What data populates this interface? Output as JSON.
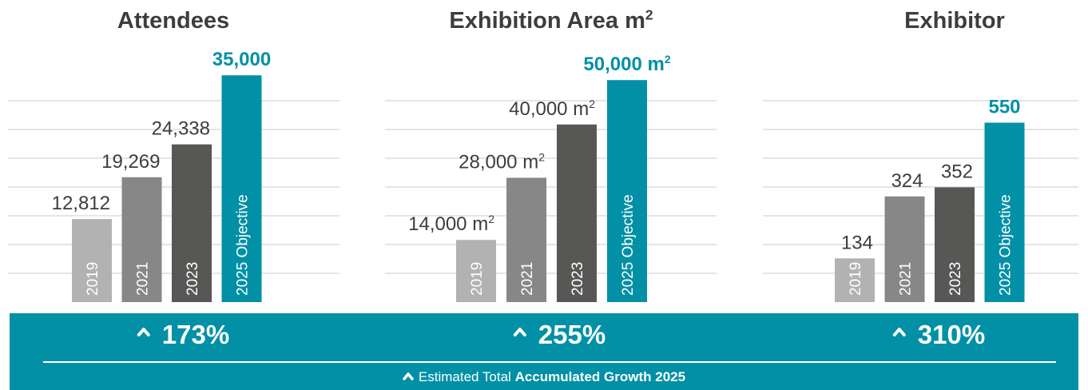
{
  "chart_data": [
    {
      "type": "bar",
      "title": "Attendees",
      "title_sup": "",
      "categories": [
        "2019",
        "2021",
        "2023",
        "2025 Objective"
      ],
      "values": [
        12812,
        19269,
        24338,
        35000
      ],
      "value_labels": [
        "12,812",
        "19,269",
        "24,338",
        "35,000"
      ],
      "unit": "",
      "ylim": [
        0,
        37000
      ],
      "grid": true,
      "highlight_index": 3
    },
    {
      "type": "bar",
      "title": "Exhibition Area m",
      "title_sup": "2",
      "categories": [
        "2019",
        "2021",
        "2023",
        "2025 Objective"
      ],
      "values": [
        14000,
        28000,
        40000,
        50000
      ],
      "value_labels": [
        "14,000 m",
        "28,000 m",
        "40,000 m",
        "50,000 m"
      ],
      "unit": "2",
      "ylim": [
        0,
        54000
      ],
      "grid": true,
      "highlight_index": 3
    },
    {
      "type": "bar",
      "title": "Exhibitor",
      "title_sup": "",
      "categories": [
        "2019",
        "2021",
        "2023",
        "2025 Objective"
      ],
      "values": [
        134,
        324,
        352,
        550
      ],
      "value_labels": [
        "134",
        "324",
        "352",
        "550"
      ],
      "unit": "",
      "ylim": [
        0,
        735
      ],
      "grid": true,
      "highlight_index": 3
    }
  ],
  "growth": [
    "173%",
    "255%",
    "310%"
  ],
  "footer": {
    "prefix": "Estimated Total",
    "emphasis": "Accumulated Growth 2025"
  },
  "colors": {
    "bar_2019": "#b2b2b2",
    "bar_2021": "#878787",
    "bar_2023": "#575756",
    "bar_objective": "#0190a6",
    "grid": "#e5e5e5",
    "title_text": "#3d3d3d",
    "label_text": "#3d3d3d",
    "footer_bg": "#0190a6"
  },
  "icons": {
    "growth": "chevron-up-icon"
  }
}
